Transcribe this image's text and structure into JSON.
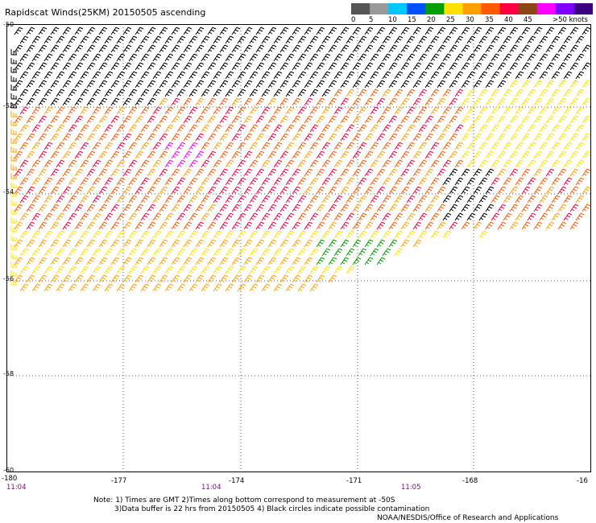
{
  "title": "Rapidscat Winds(25KM) 20150505 ascending",
  "legend": {
    "labels": [
      "0",
      "5",
      "10",
      "15",
      "20",
      "25",
      "30",
      "35",
      "40",
      "45",
      ">50 knots"
    ],
    "colors": [
      "#555555",
      "#9a9a9a",
      "#00c8ff",
      "#0050ff",
      "#00a000",
      "#ffe000",
      "#ffa000",
      "#ff5a00",
      "#ff0040",
      "#8b4513",
      "#ff00ff",
      "#8000ff",
      "#3a0080"
    ]
  },
  "y_ticks": [
    "-50",
    "-52",
    "-54",
    "-56",
    "-58",
    "-60"
  ],
  "x_ticks": [
    "-180",
    "-177",
    "-174",
    "-171",
    "-168",
    "-16"
  ],
  "times": [
    "11:04",
    "11:04",
    "11:05"
  ],
  "notes": [
    "Note: 1) Times are GMT 2)Times along bottom correspond to measurement at -50S",
    "3)Data buffer is 22 hrs from 20150505 4) Black circles indicate possible contamination",
    "NOAA/NESDIS/Office of Research and Applications"
  ]
}
